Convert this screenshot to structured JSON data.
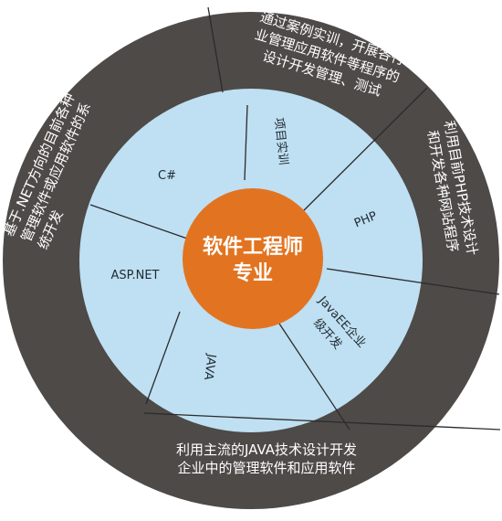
{
  "center": {
    "line1": "软件工程师",
    "line2": "专业",
    "color": "#E27421"
  },
  "colors": {
    "outer_ring": "#4D4A48",
    "inner_ring": "#BFDFF2",
    "divider": "#2B2B2B"
  },
  "inner_segments": [
    {
      "id": "csharp",
      "label": "C#"
    },
    {
      "id": "project",
      "label": "项目实训"
    },
    {
      "id": "php",
      "label": "PHP"
    },
    {
      "id": "javaee",
      "line1": "JavaEE企业",
      "line2": "级开发"
    },
    {
      "id": "java",
      "label": "JAVA"
    },
    {
      "id": "aspnet",
      "label": "ASP.NET"
    }
  ],
  "outer_segments": [
    {
      "id": "top",
      "lines": [
        "通过案例实训，开展各行",
        "业管理应用软件等程序的",
        "设计开发管理、测试"
      ]
    },
    {
      "id": "right",
      "lines": [
        "利用目前PHP技术设计",
        "和开发各种网站程序"
      ]
    },
    {
      "id": "bottom",
      "lines": [
        "利用主流的JAVA技术设计开发",
        "企业中的管理软件和应用软件"
      ]
    },
    {
      "id": "left",
      "lines": [
        "基于.NET方向的目前各种",
        "管理软件或应用软件的系",
        "统开发"
      ]
    }
  ]
}
